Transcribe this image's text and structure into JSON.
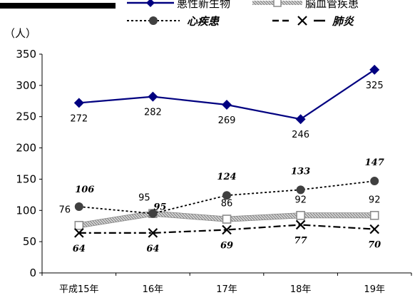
{
  "chart_data": {
    "type": "line",
    "ylabel": "（人）",
    "categories": [
      "平成15年",
      "16年",
      "17年",
      "18年",
      "19年"
    ],
    "ylim": [
      0,
      350
    ],
    "yticks": [
      0,
      50,
      100,
      150,
      200,
      250,
      300,
      350
    ],
    "grid": false,
    "legend_position": "top",
    "series": [
      {
        "name": "悪性新生物",
        "values": [
          272,
          282,
          269,
          246,
          325
        ],
        "color": "#000080",
        "marker": "diamond",
        "line": "solid",
        "label_style": "plain"
      },
      {
        "name": "脳血管疾患",
        "values": [
          76,
          95,
          86,
          92,
          92
        ],
        "color": "#a0a0a0",
        "marker": "square-open",
        "line": "hatched",
        "label_style": "plain"
      },
      {
        "name": "心疾患",
        "values": [
          106,
          95,
          124,
          133,
          147
        ],
        "color": "#404040",
        "marker": "circle",
        "line": "dotted",
        "label_style": "italic"
      },
      {
        "name": "肺炎",
        "values": [
          64,
          64,
          69,
          77,
          70
        ],
        "color": "#000000",
        "marker": "x",
        "line": "dash-dot",
        "label_style": "italic"
      }
    ]
  }
}
